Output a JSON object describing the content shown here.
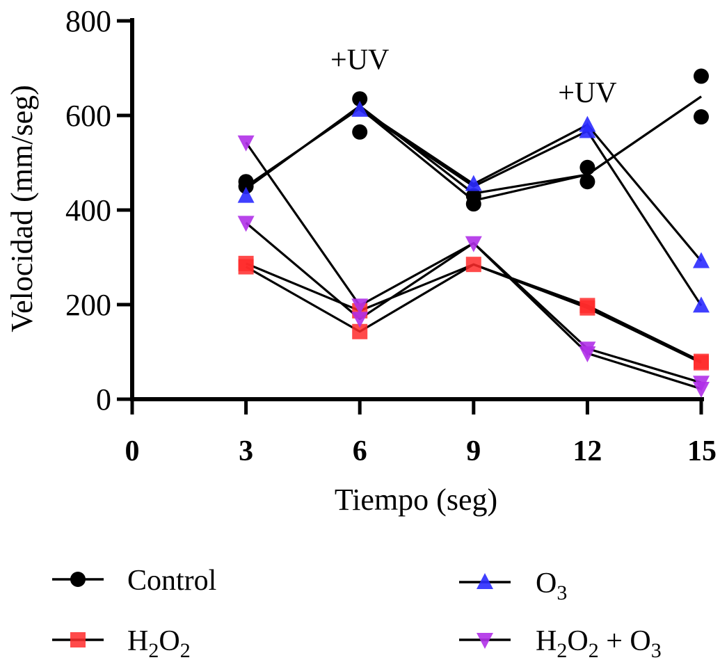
{
  "chart_data": {
    "type": "line",
    "title": "",
    "xlabel": "Tiempo (seg)",
    "ylabel": "Velocidad (mm/seg)",
    "xlim": [
      0,
      15
    ],
    "ylim": [
      0,
      800
    ],
    "x_ticks": [
      {
        "value": 0,
        "label": "0"
      },
      {
        "value": 3,
        "label": "3"
      },
      {
        "value": 6,
        "label": "6"
      },
      {
        "value": 9,
        "label": "9"
      },
      {
        "value": 12,
        "label": "12"
      },
      {
        "value": 15,
        "label": "15"
      }
    ],
    "y_ticks": [
      {
        "value": 0,
        "label": "0"
      },
      {
        "value": 200,
        "label": "200"
      },
      {
        "value": 400,
        "label": "400"
      },
      {
        "value": 600,
        "label": "600"
      },
      {
        "value": 800,
        "label": "800"
      }
    ],
    "annotations": [
      {
        "text": "+UV",
        "x": 6,
        "y": 720
      },
      {
        "text": "+UV",
        "x": 12,
        "y": 650
      }
    ],
    "grid": false,
    "legend_position": "bottom",
    "series": [
      {
        "name": "Control",
        "legend_text": "Control",
        "color": "#000000",
        "marker": "circle",
        "points": [
          [
            3,
            460
          ],
          [
            3,
            450
          ],
          [
            6,
            635
          ],
          [
            6,
            565
          ],
          [
            9,
            430
          ],
          [
            9,
            413
          ],
          [
            12,
            490
          ],
          [
            12,
            460
          ],
          [
            15,
            683
          ],
          [
            15,
            597
          ]
        ],
        "lines": [
          [
            [
              3,
              445
            ],
            [
              6,
              620
            ],
            [
              9,
              435
            ],
            [
              12,
              475
            ],
            [
              15,
              640
            ]
          ],
          [
            [
              3,
              450
            ],
            [
              6,
              615
            ],
            [
              9,
              420
            ],
            [
              12,
              475
            ],
            [
              15,
              640
            ]
          ]
        ]
      },
      {
        "name": "O3",
        "legend_text": "O",
        "legend_sub": "3",
        "color": "#2a2aff",
        "marker": "triangle-up",
        "points": [
          [
            3,
            430
          ],
          [
            6,
            612
          ],
          [
            9,
            455
          ],
          [
            12,
            580
          ],
          [
            12,
            567
          ],
          [
            15,
            292
          ],
          [
            15,
            198
          ]
        ],
        "lines": [
          [
            [
              6,
              615
            ],
            [
              9,
              455
            ],
            [
              12,
              580
            ],
            [
              15,
              292
            ]
          ],
          [
            [
              6,
              612
            ],
            [
              9,
              450
            ],
            [
              12,
              567
            ],
            [
              15,
              198
            ]
          ]
        ]
      },
      {
        "name": "H2O2",
        "legend_parts": [
          "H",
          "2",
          "O",
          "2"
        ],
        "color": "#ff2a2a",
        "marker": "square",
        "points": [
          [
            3,
            287
          ],
          [
            3,
            280
          ],
          [
            6,
            187
          ],
          [
            6,
            143
          ],
          [
            9,
            285
          ],
          [
            12,
            198
          ],
          [
            12,
            193
          ],
          [
            15,
            80
          ],
          [
            15,
            77
          ]
        ],
        "lines": [
          [
            [
              3,
              287
            ],
            [
              6,
              187
            ],
            [
              9,
              285
            ],
            [
              12,
              198
            ],
            [
              15,
              80
            ]
          ],
          [
            [
              3,
              280
            ],
            [
              6,
              143
            ],
            [
              9,
              285
            ],
            [
              12,
              193
            ],
            [
              15,
              77
            ]
          ]
        ]
      },
      {
        "name": "H2O2 + O3",
        "legend_parts": [
          "H",
          "2",
          "O",
          "2",
          " + O",
          "3"
        ],
        "color": "#b030e8",
        "marker": "triangle-down",
        "points": [
          [
            3,
            543
          ],
          [
            3,
            373
          ],
          [
            6,
            198
          ],
          [
            6,
            170
          ],
          [
            9,
            330
          ],
          [
            12,
            107
          ],
          [
            12,
            97
          ],
          [
            15,
            35
          ],
          [
            15,
            22
          ]
        ],
        "lines": [
          [
            [
              3,
              543
            ],
            [
              6,
              198
            ],
            [
              9,
              330
            ],
            [
              12,
              107
            ],
            [
              15,
              35
            ]
          ],
          [
            [
              3,
              373
            ],
            [
              6,
              170
            ],
            [
              9,
              330
            ],
            [
              12,
              97
            ],
            [
              15,
              22
            ]
          ]
        ]
      }
    ]
  }
}
